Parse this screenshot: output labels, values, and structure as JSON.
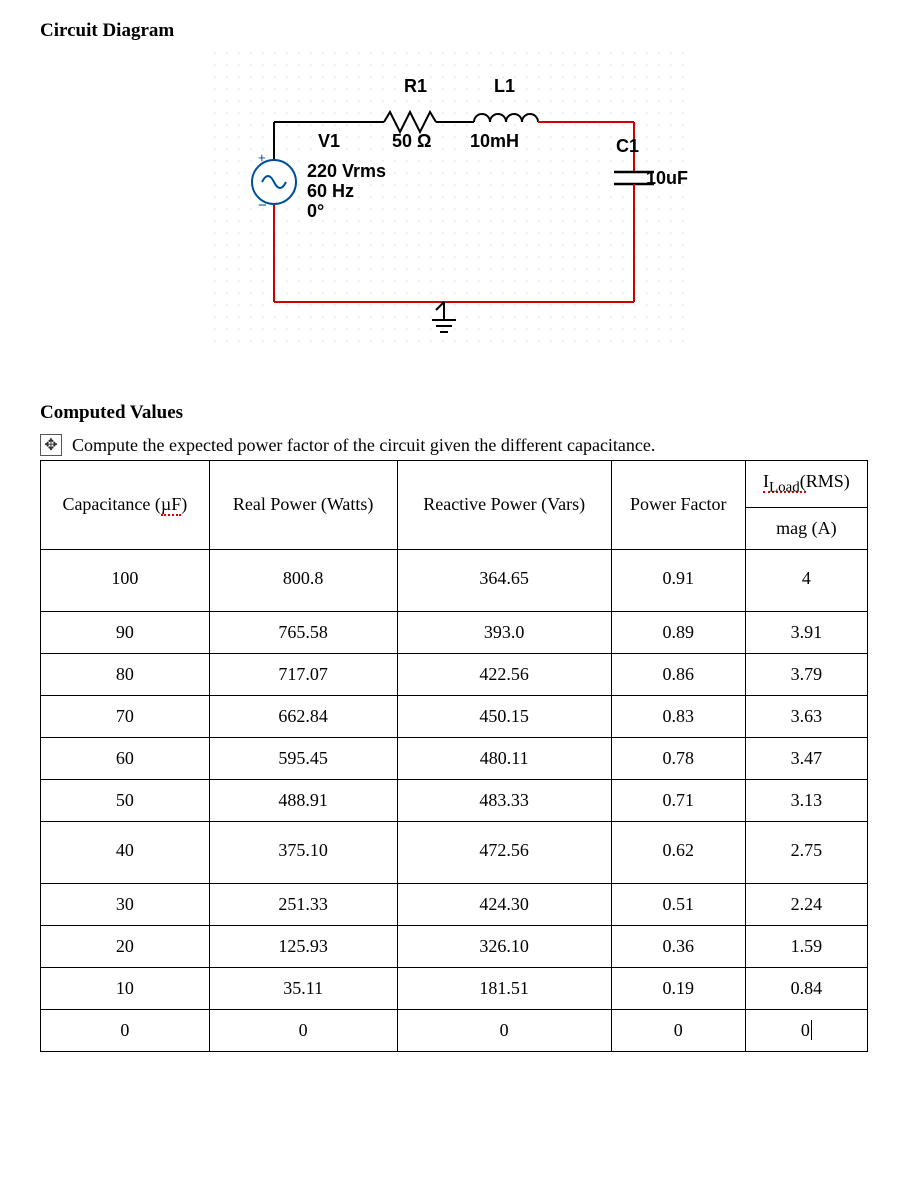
{
  "sections": {
    "circuit_title": "Circuit Diagram",
    "computed_title": "Computed Values",
    "instruction": "Compute the expected power factor of the circuit given the different capacitance."
  },
  "circuit": {
    "source": {
      "name": "V1",
      "vrms": "220 Vrms",
      "freq": "60 Hz",
      "phase": "0°"
    },
    "r1": {
      "name": "R1",
      "value": "50 Ω"
    },
    "l1": {
      "name": "L1",
      "value": "10mH"
    },
    "c1": {
      "name": "C1",
      "value": "10uF"
    },
    "colors": {
      "wire_top": "#000000",
      "wire_red": "#cc0000",
      "source_border": "#004e9a",
      "component_border": "#000000",
      "grid_dot": "#dddddd"
    }
  },
  "table": {
    "headers": {
      "cap": "Capacitance (µF)",
      "real": "Real Power (Watts)",
      "reactive": "Reactive Power (Vars)",
      "pf": "Power Factor",
      "irms": "Iʟᴏᴀᴅ(RMS)",
      "mag": "mag (A)"
    },
    "rows": [
      {
        "cap": "100",
        "real": "800.8",
        "reactive": "364.65",
        "pf": "0.91",
        "mag": "4"
      },
      {
        "cap": "90",
        "real": "765.58",
        "reactive": "393.0",
        "pf": "0.89",
        "mag": "3.91"
      },
      {
        "cap": "80",
        "real": "717.07",
        "reactive": "422.56",
        "pf": "0.86",
        "mag": "3.79"
      },
      {
        "cap": "70",
        "real": "662.84",
        "reactive": "450.15",
        "pf": "0.83",
        "mag": "3.63"
      },
      {
        "cap": "60",
        "real": "595.45",
        "reactive": "480.11",
        "pf": "0.78",
        "mag": "3.47"
      },
      {
        "cap": "50",
        "real": "488.91",
        "reactive": "483.33",
        "pf": "0.71",
        "mag": "3.13"
      },
      {
        "cap": "40",
        "real": "375.10",
        "reactive": "472.56",
        "pf": "0.62",
        "mag": "2.75"
      },
      {
        "cap": "30",
        "real": "251.33",
        "reactive": "424.30",
        "pf": "0.51",
        "mag": "2.24"
      },
      {
        "cap": "20",
        "real": "125.93",
        "reactive": "326.10",
        "pf": "0.36",
        "mag": "1.59"
      },
      {
        "cap": "10",
        "real": "35.11",
        "reactive": "181.51",
        "pf": "0.19",
        "mag": "0.84"
      },
      {
        "cap": "0",
        "real": "0",
        "reactive": "0",
        "pf": "0",
        "mag": "0"
      }
    ]
  }
}
